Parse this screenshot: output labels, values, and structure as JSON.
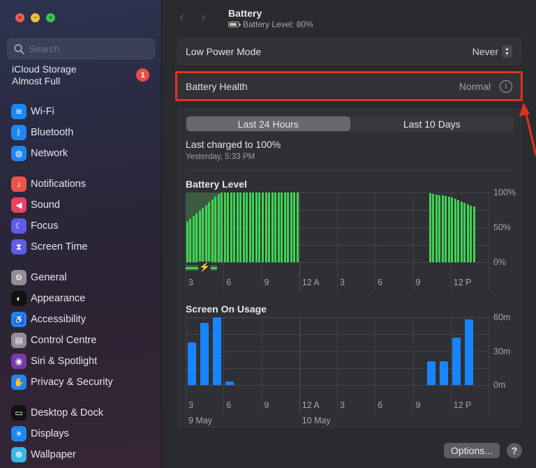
{
  "window": {
    "traffic_lights": {
      "close": "×",
      "minimize": "−",
      "maximize": "+"
    }
  },
  "sidebar": {
    "search_placeholder": "Search",
    "icloud": {
      "line1": "iCloud Storage",
      "line2": "Almost Full",
      "badge": "1"
    },
    "groups": [
      [
        {
          "label": "Wi-Fi",
          "icon": "wifi-icon",
          "glyph": "≋",
          "color": "#1e86f0"
        },
        {
          "label": "Bluetooth",
          "icon": "bluetooth-icon",
          "glyph": "ᛒ",
          "color": "#1e86f0"
        },
        {
          "label": "Network",
          "icon": "globe-icon",
          "glyph": "◍",
          "color": "#1e86f0"
        }
      ],
      [
        {
          "label": "Notifications",
          "icon": "bell-icon",
          "glyph": "♪",
          "color": "#ee5349"
        },
        {
          "label": "Sound",
          "icon": "speaker-icon",
          "glyph": "◀",
          "color": "#eb4263"
        },
        {
          "label": "Focus",
          "icon": "moon-icon",
          "glyph": "☾",
          "color": "#5e5ce6"
        },
        {
          "label": "Screen Time",
          "icon": "hourglass-icon",
          "glyph": "⧗",
          "color": "#5e5ce6"
        }
      ],
      [
        {
          "label": "General",
          "icon": "gear-icon",
          "glyph": "⚙",
          "color": "#8e8e93"
        },
        {
          "label": "Appearance",
          "icon": "appearance-icon",
          "glyph": "◐",
          "color": "#111111"
        },
        {
          "label": "Accessibility",
          "icon": "accessibility-icon",
          "glyph": "♿",
          "color": "#1e86f0"
        },
        {
          "label": "Control Centre",
          "icon": "toggles-icon",
          "glyph": "▤",
          "color": "#8e8e93"
        },
        {
          "label": "Siri & Spotlight",
          "icon": "siri-icon",
          "glyph": "◉",
          "color": "#7a3aa8"
        },
        {
          "label": "Privacy & Security",
          "icon": "hand-icon",
          "glyph": "✋",
          "color": "#1e86f0"
        }
      ],
      [
        {
          "label": "Desktop & Dock",
          "icon": "dock-icon",
          "glyph": "▭",
          "color": "#111111"
        },
        {
          "label": "Displays",
          "icon": "sun-icon",
          "glyph": "☀",
          "color": "#1e86f0"
        },
        {
          "label": "Wallpaper",
          "icon": "flower-icon",
          "glyph": "❁",
          "color": "#3bb4e6"
        }
      ]
    ]
  },
  "header": {
    "back": "‹",
    "forward": "›",
    "title": "Battery",
    "subtitle": "Battery Level: 80%"
  },
  "settings": {
    "low_power_mode": {
      "label": "Low Power Mode",
      "value": "Never"
    },
    "battery_health": {
      "label": "Battery Health",
      "value": "Normal",
      "info": "i"
    }
  },
  "tabs": {
    "active": "Last 24 Hours",
    "inactive": "Last 10 Days"
  },
  "last_charged": {
    "title": "Last charged to 100%",
    "time": "Yesterday, 5:33 PM"
  },
  "battery_chart": {
    "title": "Battery Level",
    "y_labels": [
      "100%",
      "50%",
      "0%"
    ],
    "x_labels": [
      "3",
      "6",
      "9",
      "12 A",
      "3",
      "6",
      "9",
      "12 P"
    ],
    "charging_icon": "⚡"
  },
  "usage_chart": {
    "title": "Screen On Usage",
    "y_labels": [
      "60m",
      "30m",
      "0m"
    ],
    "x_labels": [
      "3",
      "6",
      "9",
      "12 A",
      "3",
      "6",
      "9",
      "12 P"
    ],
    "date_labels": [
      "9 May",
      "10 May"
    ]
  },
  "footer": {
    "options": "Options...",
    "help": "?"
  },
  "annotation": {
    "color": "#e4301e"
  },
  "chart_data": [
    {
      "type": "bar",
      "title": "Battery Level",
      "xlabel": "",
      "ylabel": "%",
      "ylim": [
        0,
        100
      ],
      "interval": "15 min",
      "x_tick_labels": [
        "3",
        "6",
        "9",
        "12 A",
        "3",
        "6",
        "9",
        "12 P"
      ],
      "segments": [
        {
          "start": "3:00 PM (9 May)",
          "values": [
            58,
            62,
            66,
            70,
            74,
            78,
            82,
            86,
            90,
            94,
            98,
            100,
            100,
            100,
            100,
            100,
            100,
            100,
            100,
            100,
            100,
            100,
            100,
            100,
            100,
            100,
            100,
            100,
            100,
            100,
            100,
            100,
            100,
            100,
            100,
            100
          ],
          "charging_until": "5:30 PM"
        },
        {
          "start": "10:15 AM (10 May)",
          "values": [
            99,
            98,
            97,
            96,
            96,
            95,
            94,
            93,
            91,
            89,
            87,
            85,
            83,
            81,
            80
          ]
        }
      ],
      "grid": true
    },
    {
      "type": "bar",
      "title": "Screen On Usage",
      "xlabel": "",
      "ylabel": "minutes",
      "ylim": [
        0,
        60
      ],
      "categories": [
        "3 PM",
        "4 PM",
        "5 PM",
        "6 PM",
        "7 PM",
        "8 PM",
        "9 PM",
        "10 PM",
        "11 PM",
        "12 AM",
        "1 AM",
        "2 AM",
        "3 AM",
        "4 AM",
        "5 AM",
        "6 AM",
        "7 AM",
        "8 AM",
        "9 AM",
        "10 AM",
        "11 AM",
        "12 PM",
        "1 PM"
      ],
      "values": [
        38,
        55,
        60,
        3,
        0,
        0,
        0,
        0,
        0,
        0,
        0,
        0,
        0,
        0,
        0,
        0,
        0,
        0,
        0,
        21,
        21,
        42,
        58
      ],
      "date_labels": [
        "9 May",
        "10 May"
      ],
      "grid": true
    }
  ]
}
